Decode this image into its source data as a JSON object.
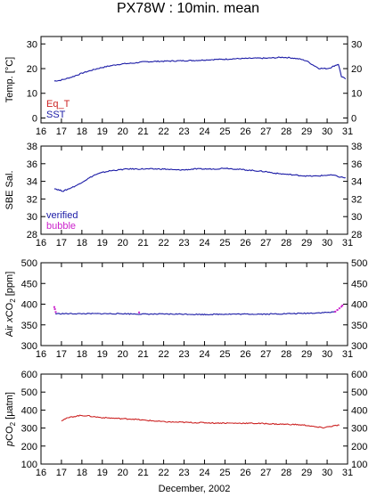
{
  "title": "PX78W : 10min. mean",
  "xlabel": "December, 2002",
  "colors": {
    "blue": "#1a1aa6",
    "red": "#cc2222",
    "magenta": "#cc22cc",
    "axis": "#000000"
  },
  "chart_data": [
    {
      "type": "line",
      "ylabel": "Temp. [°C]",
      "xlim": [
        16,
        31
      ],
      "ylim": [
        -2,
        33
      ],
      "xticks": [
        16,
        17,
        18,
        19,
        20,
        21,
        22,
        23,
        24,
        25,
        26,
        27,
        28,
        29,
        30,
        31
      ],
      "yticks": [
        0,
        10,
        20,
        30
      ],
      "legend": [
        {
          "label": "Eq_T",
          "color": "#cc2222"
        },
        {
          "label": "SST",
          "color": "#1a1aa6"
        }
      ],
      "series": [
        {
          "name": "SST",
          "color": "#1a1aa6",
          "x": [
            16.65,
            16.9,
            17.2,
            17.5,
            17.8,
            18.1,
            18.5,
            18.9,
            19.3,
            19.7,
            20.1,
            20.5,
            21.0,
            21.5,
            22.0,
            22.5,
            23.0,
            23.5,
            24.0,
            24.5,
            25.0,
            25.5,
            26.0,
            26.5,
            27.0,
            27.5,
            27.8,
            28.0,
            28.3,
            28.7,
            29.0,
            29.3,
            29.6,
            30.0,
            30.2,
            30.4,
            30.55,
            30.7,
            30.9
          ],
          "y": [
            15.0,
            15.2,
            15.8,
            16.6,
            17.5,
            18.4,
            19.4,
            20.3,
            21.0,
            21.6,
            22.0,
            22.2,
            22.7,
            22.9,
            23.0,
            23.1,
            23.2,
            23.3,
            23.5,
            23.7,
            23.8,
            24.0,
            24.1,
            24.2,
            24.2,
            24.4,
            24.6,
            24.5,
            24.3,
            23.8,
            23.1,
            21.5,
            20.1,
            20.0,
            20.5,
            21.3,
            21.8,
            16.8,
            15.8
          ]
        }
      ]
    },
    {
      "type": "line",
      "ylabel": "SBE Sal.",
      "xlim": [
        16,
        31
      ],
      "ylim": [
        28,
        38
      ],
      "xticks": [
        16,
        17,
        18,
        19,
        20,
        21,
        22,
        23,
        24,
        25,
        26,
        27,
        28,
        29,
        30,
        31
      ],
      "yticks": [
        28,
        30,
        32,
        34,
        36,
        38
      ],
      "legend": [
        {
          "label": "verified",
          "color": "#1a1aa6"
        },
        {
          "label": "bubble",
          "color": "#cc22cc"
        }
      ],
      "series": [
        {
          "name": "verified",
          "color": "#1a1aa6",
          "x": [
            16.65,
            16.9,
            17.1,
            17.3,
            17.5,
            17.8,
            18.0,
            18.3,
            18.6,
            19.0,
            19.4,
            19.8,
            20.2,
            20.6,
            21.0,
            21.5,
            22.0,
            22.5,
            23.0,
            23.5,
            24.0,
            24.5,
            25.0,
            25.5,
            26.0,
            26.5,
            27.0,
            27.5,
            28.0,
            28.5,
            29.0,
            29.5,
            30.0,
            30.3,
            30.6,
            30.9
          ],
          "y": [
            33.2,
            33.0,
            32.9,
            33.1,
            33.3,
            33.6,
            33.9,
            34.3,
            34.7,
            35.0,
            35.2,
            35.3,
            35.4,
            35.4,
            35.4,
            35.4,
            35.4,
            35.3,
            35.3,
            35.4,
            35.4,
            35.4,
            35.5,
            35.4,
            35.3,
            35.2,
            35.1,
            34.9,
            34.8,
            34.7,
            34.6,
            34.6,
            34.7,
            34.7,
            34.5,
            34.4
          ]
        }
      ]
    },
    {
      "type": "line",
      "ylabel": "Air xCO2 [ppm]",
      "xlim": [
        16,
        31
      ],
      "ylim": [
        300,
        500
      ],
      "xticks": [
        16,
        17,
        18,
        19,
        20,
        21,
        22,
        23,
        24,
        25,
        26,
        27,
        28,
        29,
        30,
        31
      ],
      "yticks": [
        300,
        350,
        400,
        450,
        500
      ],
      "series": [
        {
          "name": "",
          "color": "#1a1aa6",
          "x": [
            16.7,
            17.0,
            17.5,
            18.0,
            19.0,
            20.0,
            21.0,
            22.0,
            23.0,
            24.0,
            25.0,
            26.0,
            27.0,
            28.0,
            29.0,
            29.5,
            30.0,
            30.4
          ],
          "y": [
            377,
            377,
            377,
            377,
            377,
            377,
            376,
            376,
            376,
            375,
            376,
            376,
            376,
            377,
            378,
            379,
            380,
            381
          ]
        },
        {
          "name": "",
          "color": "#cc22cc",
          "x": [
            16.65,
            16.68,
            16.72,
            20.8,
            30.4,
            30.5,
            30.6,
            30.7,
            30.75
          ],
          "y": [
            393,
            388,
            381,
            380,
            382,
            386,
            390,
            394,
            397
          ]
        }
      ]
    },
    {
      "type": "line",
      "ylabel": "pCO2 [μatm]",
      "xlim": [
        16,
        31
      ],
      "ylim": [
        100,
        600
      ],
      "xticks": [
        16,
        17,
        18,
        19,
        20,
        21,
        22,
        23,
        24,
        25,
        26,
        27,
        28,
        29,
        30,
        31
      ],
      "yticks": [
        100,
        200,
        300,
        400,
        500,
        600
      ],
      "series": [
        {
          "name": "",
          "color": "#cc2222",
          "x": [
            17.0,
            17.2,
            17.5,
            17.8,
            18.0,
            18.3,
            18.6,
            19.0,
            19.5,
            20.0,
            20.5,
            21.0,
            21.5,
            22.0,
            22.5,
            23.0,
            23.5,
            24.0,
            24.5,
            25.0,
            25.5,
            26.0,
            26.5,
            27.0,
            27.5,
            28.0,
            28.5,
            29.0,
            29.5,
            29.8,
            30.0,
            30.3,
            30.6
          ],
          "y": [
            342,
            352,
            362,
            368,
            370,
            368,
            363,
            358,
            355,
            352,
            350,
            344,
            340,
            335,
            333,
            332,
            330,
            330,
            328,
            328,
            327,
            327,
            326,
            325,
            322,
            321,
            319,
            315,
            305,
            302,
            306,
            312,
            316
          ]
        }
      ]
    }
  ]
}
